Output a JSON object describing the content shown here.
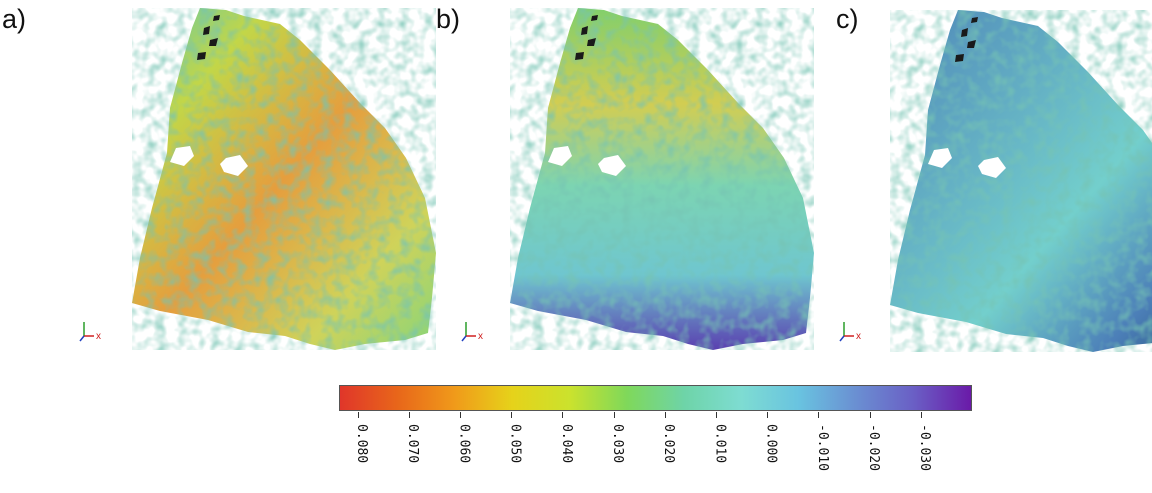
{
  "panels": [
    {
      "label": "a)",
      "theme": "warm"
    },
    {
      "label": "b)",
      "theme": "mixed"
    },
    {
      "label": "c)",
      "theme": "cool"
    }
  ],
  "axes_triad": {
    "x_label": "x"
  },
  "colorbar": {
    "colors": [
      "#e0362a",
      "#e8661a",
      "#f09a1a",
      "#e6d21a",
      "#cbe22d",
      "#7fd85a",
      "#6ed4a8",
      "#7edcd2",
      "#69c3e0",
      "#6a8fd2",
      "#6a5fc5",
      "#6a1aa8"
    ],
    "tick_labels": [
      "0.080",
      "0.070",
      "0.060",
      "0.050",
      "0.040",
      "0.030",
      "0.020",
      "0.010",
      "0.000",
      "-0.010",
      "-0.020",
      "-0.030"
    ]
  }
}
